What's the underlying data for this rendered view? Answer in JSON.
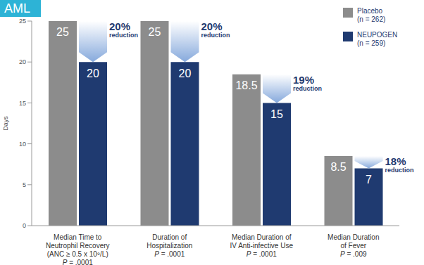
{
  "chart_data": {
    "type": "bar",
    "badge": "AML",
    "y_label": "Days",
    "categories": [
      "Median Time to\nNeutrophil Recovery\n(ANC ≥ 0.5 x 10⁹/L)",
      "Duration of\nHospitalization",
      "Median Duration of\nIV Anti-infective Use",
      "Median Duration\nof Fever"
    ],
    "p_values": [
      {
        "value": 0.0001,
        "label": "P = .0001"
      },
      {
        "value": 0.0001,
        "label": "P = .0001"
      },
      {
        "value": 0.0001,
        "label": "P = .0001"
      },
      {
        "value": 0.009,
        "label": "P = .009"
      }
    ],
    "series": [
      {
        "name": "Placebo",
        "n_label": "(n = 262)",
        "color": "#8c8c8c",
        "values": [
          25,
          25,
          18.5,
          8.5
        ]
      },
      {
        "name": "NEUPOGEN",
        "n_label": "(n = 259)",
        "color": "#1f3a70",
        "values": [
          20,
          20,
          15,
          7
        ]
      }
    ],
    "reductions": [
      {
        "value": 20,
        "label": "20%",
        "text": "reduction"
      },
      {
        "value": 20,
        "label": "20%",
        "text": "reduction"
      },
      {
        "value": 19,
        "label": "19%",
        "text": "reduction"
      },
      {
        "value": 18,
        "label": "18%",
        "text": "reduction"
      }
    ],
    "ylim": [
      0,
      25
    ],
    "yticks": [
      0,
      5,
      10,
      15,
      20,
      25
    ],
    "data_labels": true,
    "legend": "upper right"
  }
}
